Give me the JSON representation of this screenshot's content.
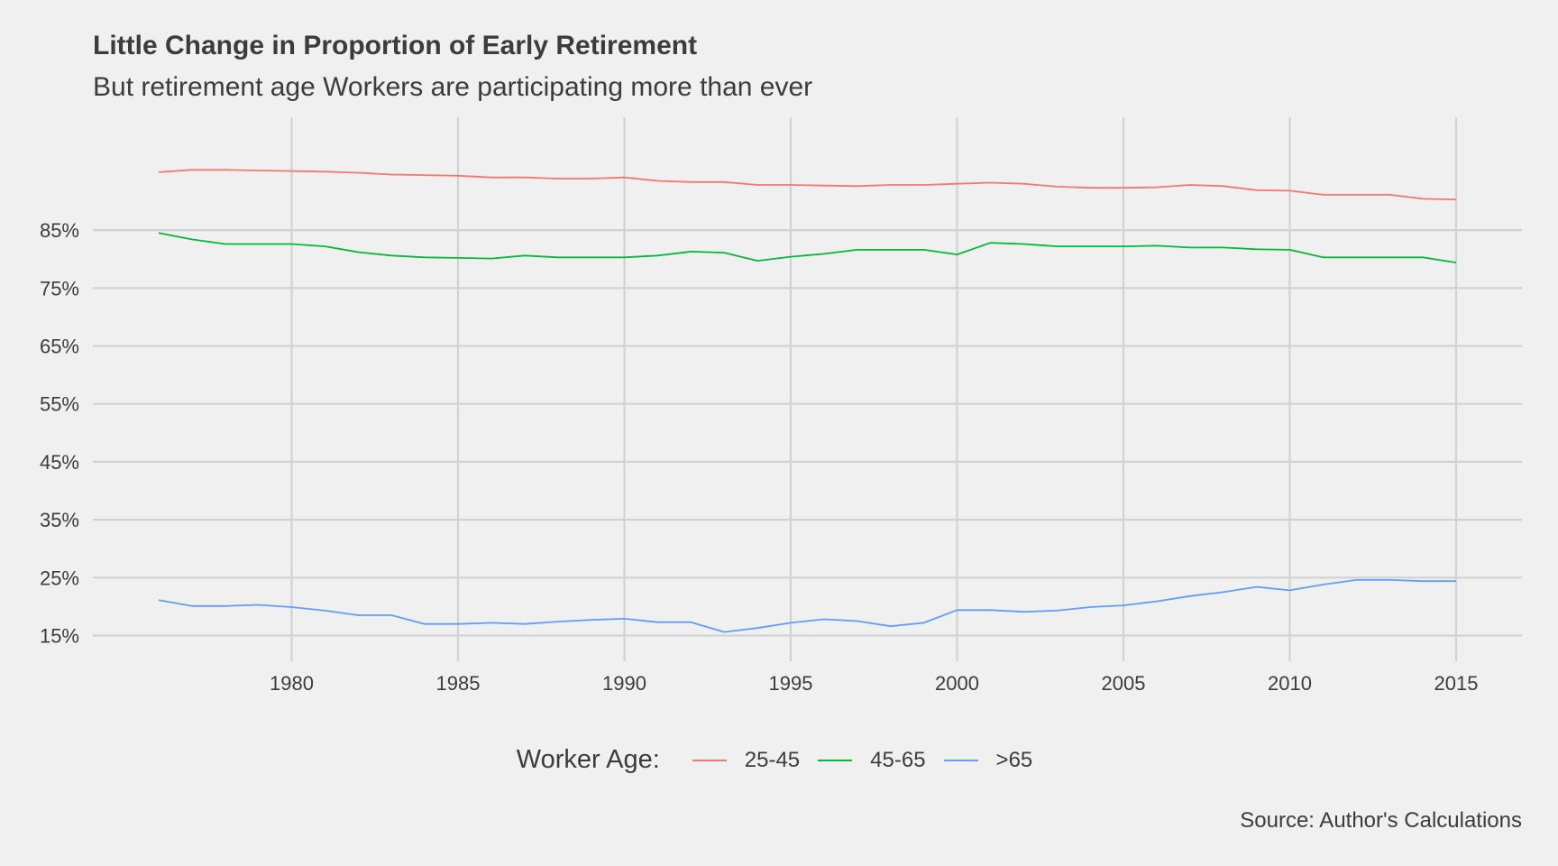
{
  "chart_data": {
    "type": "line",
    "title": "Little Change in Proportion of Early Retirement",
    "subtitle": "But retirement age Workers are participating more than ever",
    "caption": "Source: Author's Calculations",
    "legend": {
      "title": "Worker Age:",
      "position": "bottom"
    },
    "xlim": [
      1976,
      2015
    ],
    "ylim": [
      0.12,
      1.0
    ],
    "x_ticks": [
      1980,
      1985,
      1990,
      1995,
      2000,
      2005,
      2010,
      2015
    ],
    "x_tick_labels": [
      "1980",
      "1985",
      "1990",
      "1995",
      "2000",
      "2005",
      "2010",
      "2015"
    ],
    "y_ticks": [
      0.15,
      0.25,
      0.35,
      0.45,
      0.55,
      0.65,
      0.75,
      0.85
    ],
    "y_tick_labels": [
      "15%",
      "25%",
      "35%",
      "45%",
      "55%",
      "65%",
      "75%",
      "85%"
    ],
    "grid": true,
    "x": [
      1976,
      1977,
      1978,
      1979,
      1980,
      1981,
      1982,
      1983,
      1984,
      1985,
      1986,
      1987,
      1988,
      1989,
      1990,
      1991,
      1992,
      1993,
      1994,
      1995,
      1996,
      1997,
      1998,
      1999,
      2000,
      2001,
      2002,
      2003,
      2004,
      2005,
      2006,
      2007,
      2008,
      2009,
      2010,
      2011,
      2012,
      2013,
      2014,
      2015
    ],
    "series": [
      {
        "name": "25-45",
        "color": "#f8766d",
        "values": [
          0.95,
          0.954,
          0.954,
          0.953,
          0.952,
          0.951,
          0.949,
          0.946,
          0.945,
          0.944,
          0.941,
          0.941,
          0.939,
          0.939,
          0.941,
          0.935,
          0.933,
          0.933,
          0.928,
          0.928,
          0.927,
          0.926,
          0.928,
          0.928,
          0.93,
          0.932,
          0.93,
          0.925,
          0.923,
          0.923,
          0.924,
          0.928,
          0.926,
          0.919,
          0.918,
          0.911,
          0.911,
          0.911,
          0.904,
          0.903
        ]
      },
      {
        "name": "45-65",
        "color": "#00ba38",
        "values": [
          0.845,
          0.834,
          0.826,
          0.826,
          0.826,
          0.822,
          0.812,
          0.806,
          0.803,
          0.802,
          0.801,
          0.806,
          0.803,
          0.803,
          0.803,
          0.806,
          0.813,
          0.811,
          0.797,
          0.804,
          0.809,
          0.816,
          0.816,
          0.816,
          0.808,
          0.828,
          0.826,
          0.822,
          0.822,
          0.822,
          0.823,
          0.82,
          0.82,
          0.817,
          0.816,
          0.803,
          0.803,
          0.803,
          0.803,
          0.794
        ]
      },
      {
        "name": ">65",
        "color": "#619cff",
        "values": [
          0.211,
          0.201,
          0.201,
          0.203,
          0.199,
          0.193,
          0.185,
          0.185,
          0.17,
          0.17,
          0.172,
          0.17,
          0.174,
          0.177,
          0.179,
          0.173,
          0.173,
          0.156,
          0.163,
          0.172,
          0.178,
          0.175,
          0.166,
          0.172,
          0.194,
          0.194,
          0.191,
          0.193,
          0.199,
          0.202,
          0.209,
          0.218,
          0.225,
          0.234,
          0.228,
          0.238,
          0.246,
          0.246,
          0.244,
          0.244
        ]
      }
    ]
  }
}
